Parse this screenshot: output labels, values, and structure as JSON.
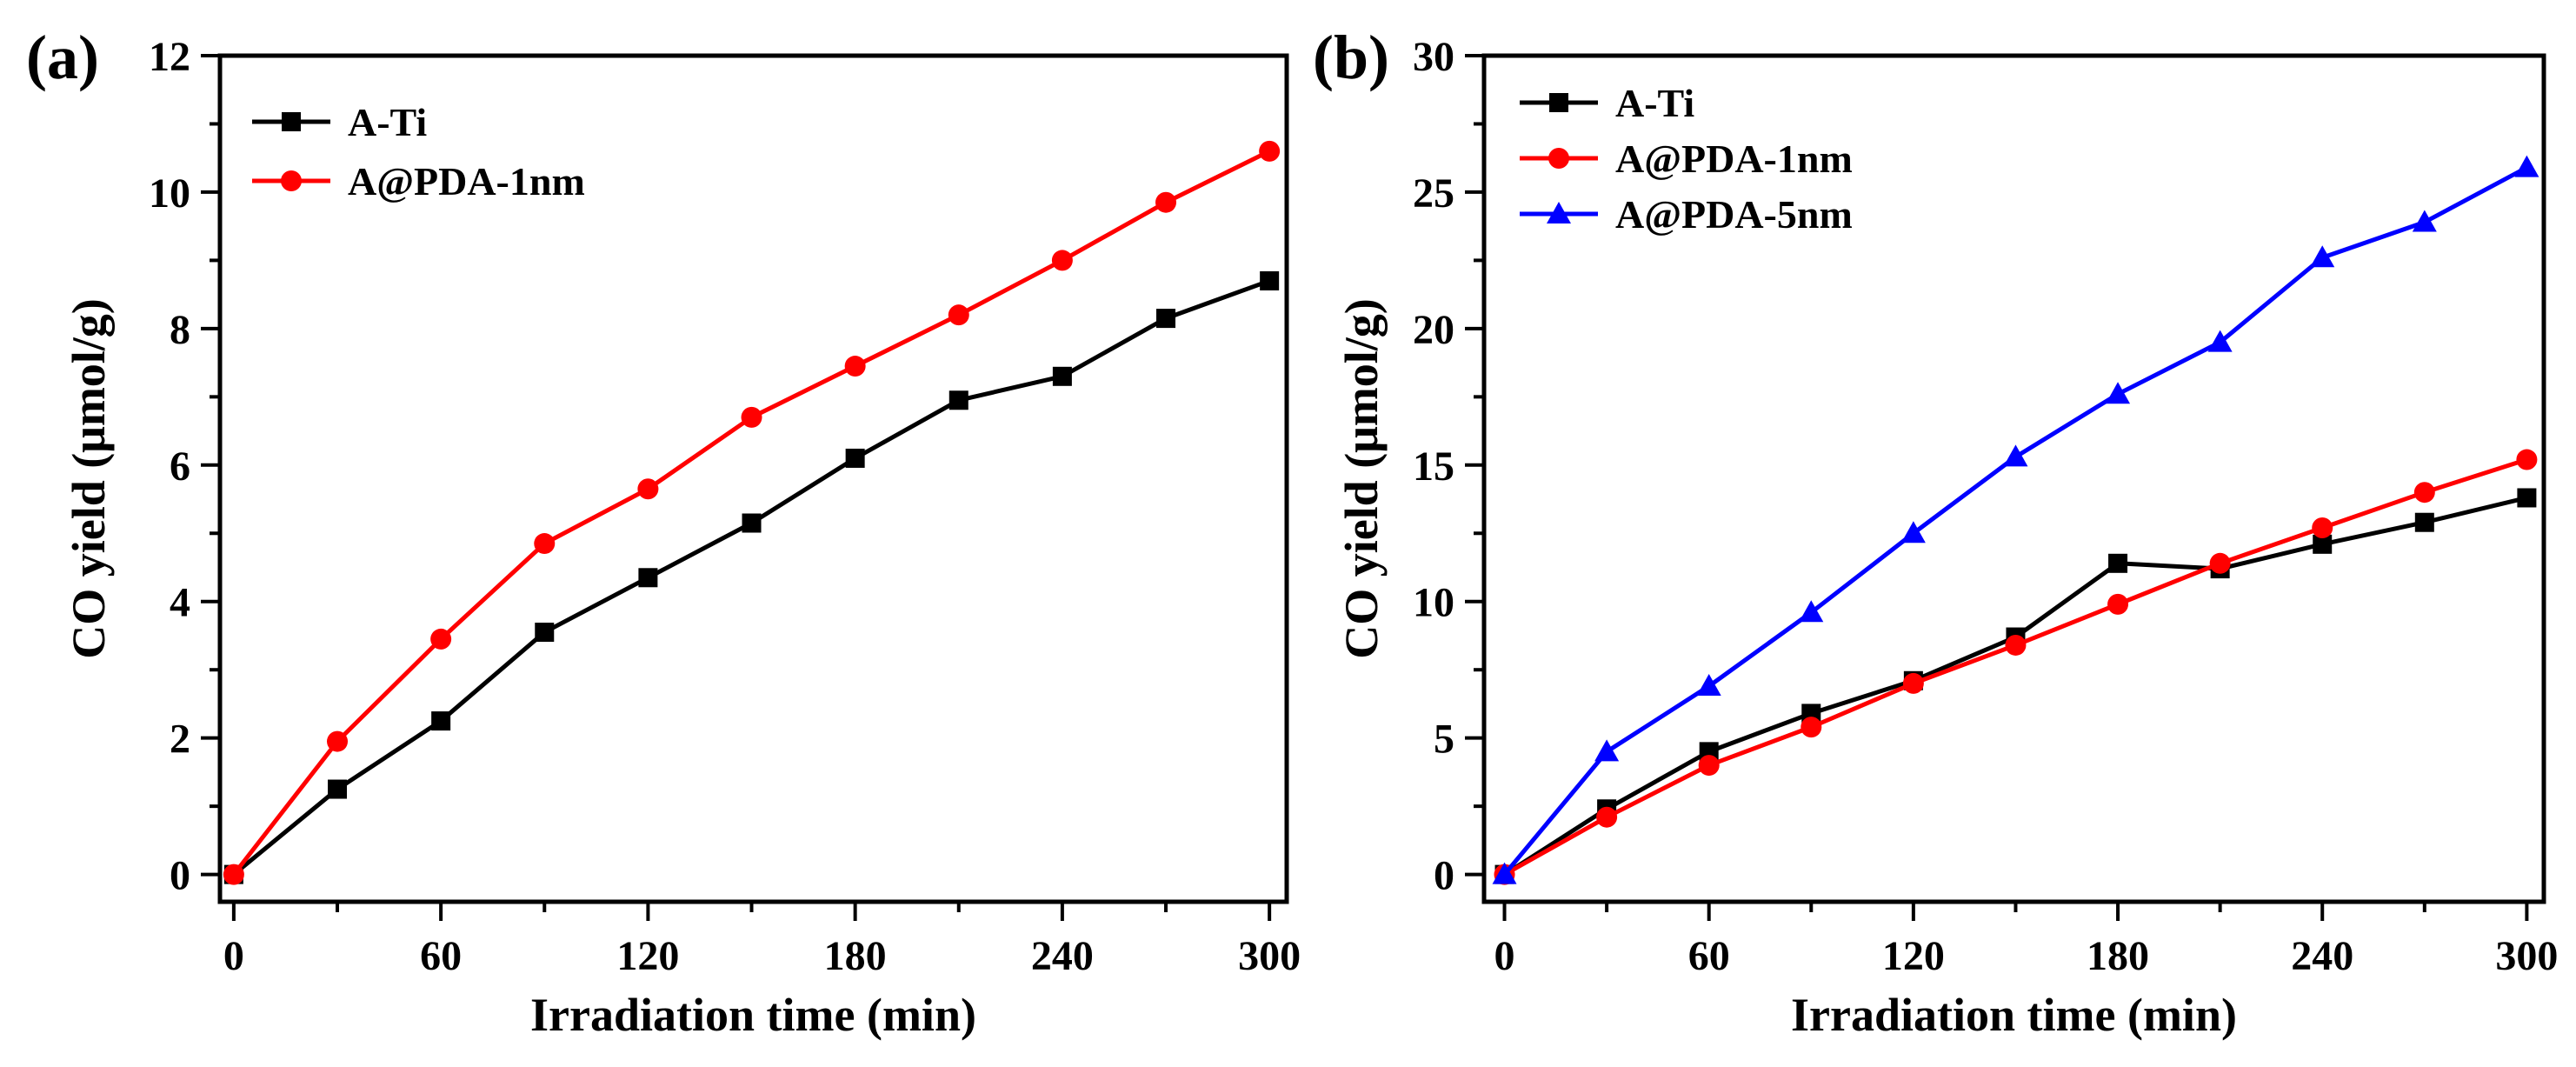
{
  "chart_data": [
    {
      "type": "line",
      "panel_label": "(a)",
      "xlabel": "Irradiation time (min)",
      "ylabel": "CO yield (μmol/g)",
      "xlim": [
        -4,
        305
      ],
      "ylim": [
        -0.4,
        12
      ],
      "xticks": [
        0,
        60,
        120,
        180,
        240,
        300
      ],
      "xtick_labels": [
        "0",
        "60",
        "120",
        "180",
        "240",
        "300"
      ],
      "yticks": [
        0,
        2,
        4,
        6,
        8,
        10,
        12
      ],
      "ytick_labels": [
        "0",
        "2",
        "4",
        "6",
        "8",
        "10",
        "12"
      ],
      "grid": false,
      "legend_position": "top-left",
      "x": [
        0,
        30,
        60,
        90,
        120,
        150,
        180,
        210,
        240,
        270,
        300
      ],
      "series": [
        {
          "name": "A-Ti",
          "marker": "square",
          "color": "#000000",
          "values": [
            0,
            1.25,
            2.25,
            3.55,
            4.35,
            5.15,
            6.1,
            6.95,
            7.3,
            8.15,
            8.7
          ]
        },
        {
          "name": "A@PDA-1nm",
          "marker": "circle",
          "color": "#ff0000",
          "values": [
            0,
            1.95,
            3.45,
            4.85,
            5.65,
            6.7,
            7.45,
            8.2,
            9.0,
            9.85,
            10.6
          ]
        }
      ]
    },
    {
      "type": "line",
      "panel_label": "(b)",
      "xlabel": "Irradiation time (min)",
      "ylabel": "CO yield (μmol/g)",
      "xlim": [
        -6,
        305
      ],
      "ylim": [
        -1,
        30
      ],
      "xticks": [
        0,
        60,
        120,
        180,
        240,
        300
      ],
      "xtick_labels": [
        "0",
        "60",
        "120",
        "180",
        "240",
        "300"
      ],
      "yticks": [
        0,
        5,
        10,
        15,
        20,
        25,
        30
      ],
      "ytick_labels": [
        "0",
        "5",
        "10",
        "15",
        "20",
        "25",
        "30"
      ],
      "grid": false,
      "legend_position": "top-left",
      "x": [
        0,
        30,
        60,
        90,
        120,
        150,
        180,
        210,
        240,
        270,
        300
      ],
      "series": [
        {
          "name": "A-Ti",
          "marker": "square",
          "color": "#000000",
          "values": [
            0,
            2.4,
            4.5,
            5.9,
            7.1,
            8.7,
            11.4,
            11.2,
            12.1,
            12.9,
            13.8
          ]
        },
        {
          "name": "A@PDA-1nm",
          "marker": "circle",
          "color": "#ff0000",
          "values": [
            0,
            2.1,
            4.0,
            5.4,
            7.0,
            8.4,
            9.9,
            11.4,
            12.7,
            14.0,
            15.2
          ]
        },
        {
          "name": "A@PDA-5nm",
          "marker": "triangle",
          "color": "#0000ff",
          "values": [
            0,
            4.5,
            6.9,
            9.6,
            12.5,
            15.3,
            17.6,
            19.5,
            22.6,
            23.9,
            25.9
          ]
        }
      ]
    }
  ]
}
